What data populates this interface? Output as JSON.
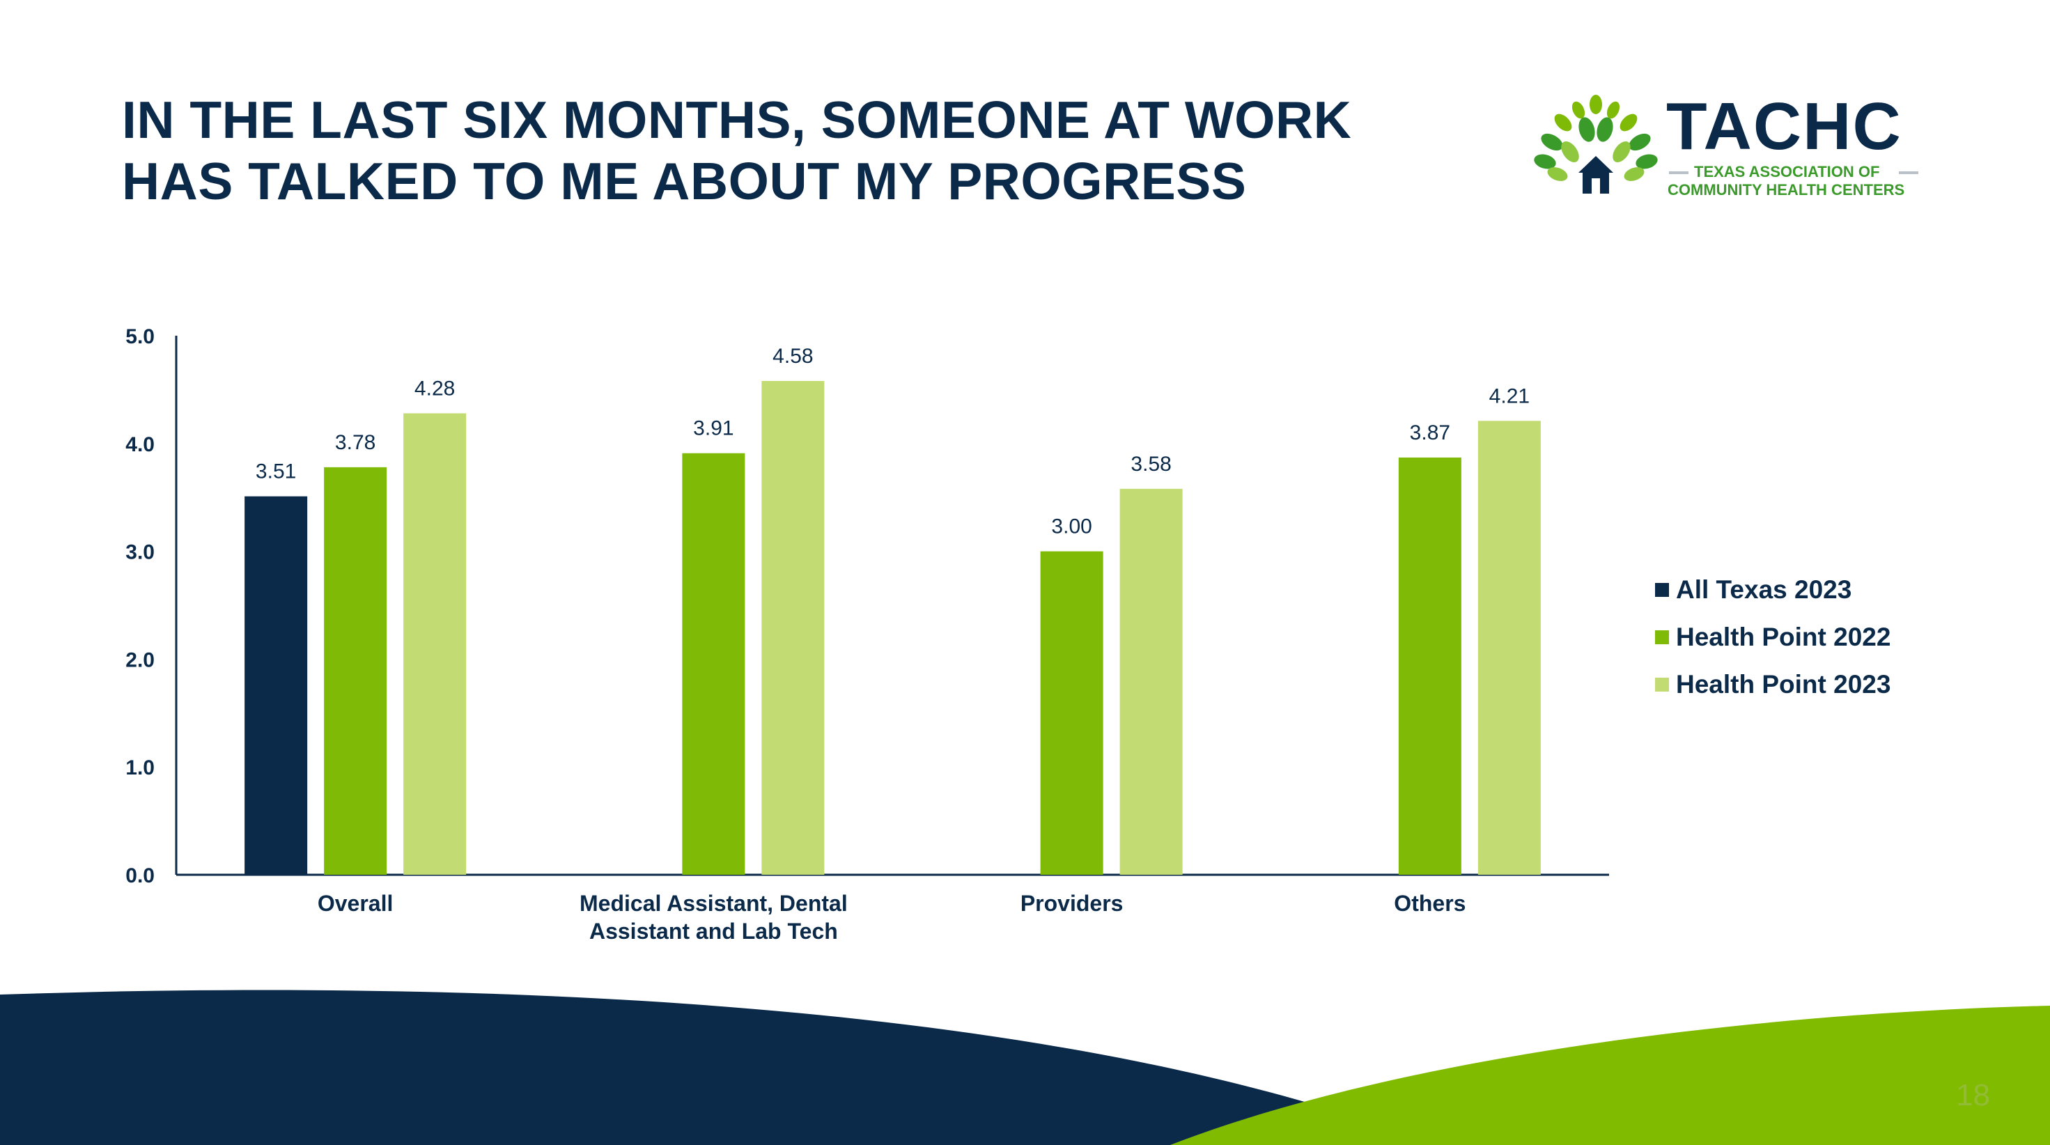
{
  "slide": {
    "title_line1": "IN THE LAST SIX MONTHS, SOMEONE AT WORK",
    "title_line2": "HAS TALKED TO ME ABOUT MY PROGRESS",
    "page_number": "18"
  },
  "logo": {
    "name": "TACHC",
    "subtitle_line1": "TEXAS ASSOCIATION OF",
    "subtitle_line2": "COMMUNITY HEALTH CENTERS"
  },
  "colors": {
    "navy": "#0b2a4a",
    "green": "#7fbb06",
    "light_green": "#c3db73",
    "footer_navy": "#0b2a4a",
    "footer_green": "#80bb00"
  },
  "chart_data": {
    "type": "bar",
    "categories": [
      "Overall",
      "Medical Assistant, Dental Assistant and Lab Tech",
      "Providers",
      "Others"
    ],
    "category_lines": [
      [
        "Overall"
      ],
      [
        "Medical Assistant, Dental",
        "Assistant and Lab Tech"
      ],
      [
        "Providers"
      ],
      [
        "Others"
      ]
    ],
    "series": [
      {
        "name": "All Texas 2023",
        "color": "#0b2a4a",
        "values": [
          3.51,
          null,
          null,
          null
        ]
      },
      {
        "name": "Health Point 2022",
        "color": "#7fbb06",
        "values": [
          3.78,
          3.91,
          3.0,
          3.87
        ]
      },
      {
        "name": "Health Point 2023",
        "color": "#c3db73",
        "values": [
          4.28,
          4.58,
          3.58,
          4.21
        ]
      }
    ],
    "data_labels": [
      [
        "3.51",
        null,
        null,
        null
      ],
      [
        "3.78",
        "3.91",
        "3.00",
        "3.87"
      ],
      [
        "4.28",
        "4.58",
        "3.58",
        "4.21"
      ]
    ],
    "ylim": [
      0,
      5
    ],
    "yticks": [
      "0.0",
      "1.0",
      "2.0",
      "3.0",
      "4.0",
      "5.0"
    ],
    "ytick_values": [
      0,
      1,
      2,
      3,
      4,
      5
    ],
    "grid": false,
    "legend_position": "right"
  }
}
